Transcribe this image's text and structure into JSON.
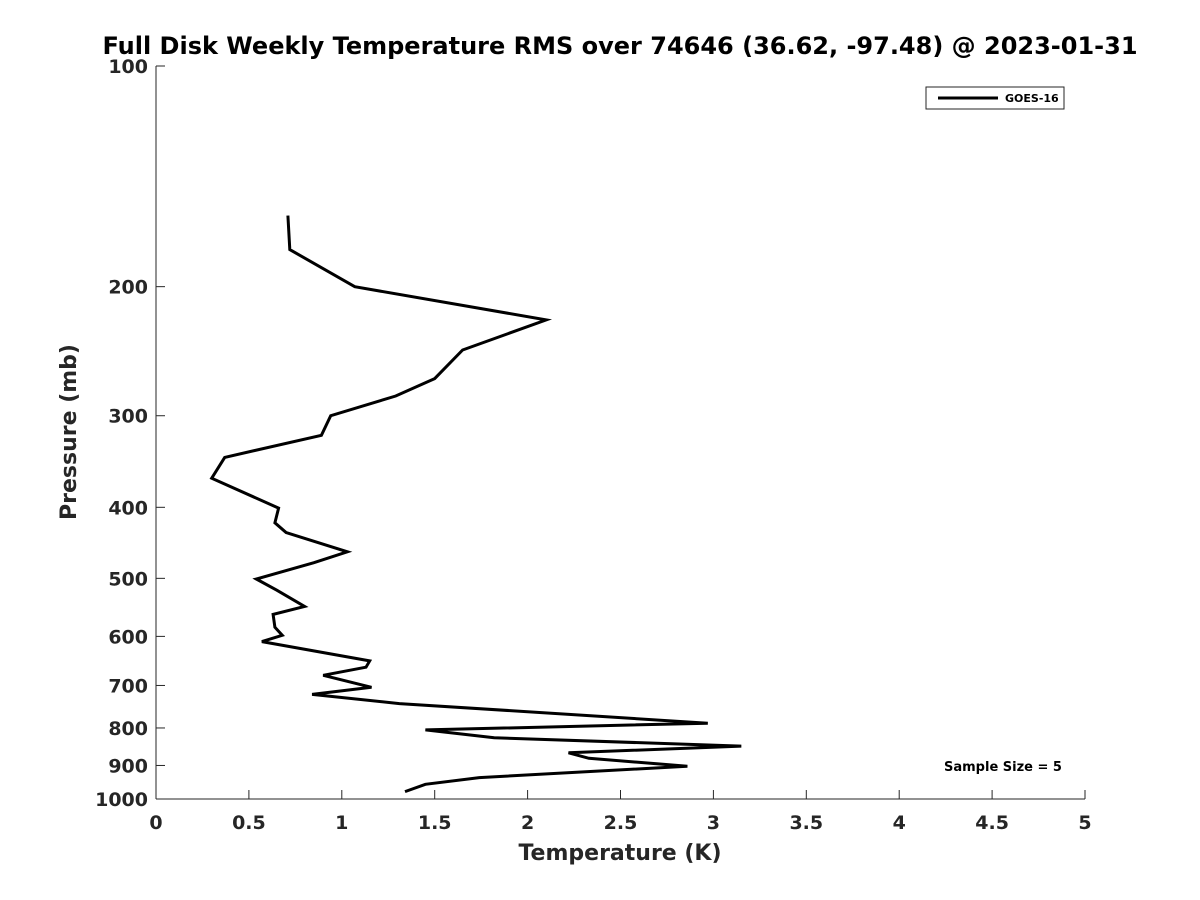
{
  "chart_data": {
    "type": "line",
    "title": "Full Disk Weekly Temperature RMS over 74646 (36.62, -97.48) @ 2023-01-31",
    "xlabel": "Temperature (K)",
    "ylabel": "Pressure (mb)",
    "xlim": [
      0,
      5
    ],
    "ylim": [
      100,
      1000
    ],
    "yscale": "log",
    "y_reversed": true,
    "xticks": [
      0,
      0.5,
      1,
      1.5,
      2,
      2.5,
      3,
      3.5,
      4,
      4.5,
      5
    ],
    "xtick_labels": [
      "0",
      "0.5",
      "1",
      "1.5",
      "2",
      "2.5",
      "3",
      "3.5",
      "4",
      "4.5",
      "5"
    ],
    "yticks": [
      100,
      200,
      300,
      400,
      500,
      600,
      700,
      800,
      900,
      1000
    ],
    "ytick_labels": [
      "100",
      "200",
      "300",
      "400",
      "500",
      "600",
      "700",
      "800",
      "900",
      "1000"
    ],
    "grid": false,
    "legend_position": "top-right",
    "annotation": "Sample Size = 5",
    "series": [
      {
        "name": "GOES-16",
        "color": "#000000",
        "points": [
          {
            "x": 0.71,
            "y": 160
          },
          {
            "x": 0.72,
            "y": 178
          },
          {
            "x": 1.07,
            "y": 200
          },
          {
            "x": 2.1,
            "y": 222
          },
          {
            "x": 1.65,
            "y": 244
          },
          {
            "x": 1.5,
            "y": 267
          },
          {
            "x": 1.29,
            "y": 282
          },
          {
            "x": 0.94,
            "y": 300
          },
          {
            "x": 0.89,
            "y": 319
          },
          {
            "x": 0.37,
            "y": 342
          },
          {
            "x": 0.3,
            "y": 365
          },
          {
            "x": 0.66,
            "y": 401
          },
          {
            "x": 0.64,
            "y": 420
          },
          {
            "x": 0.7,
            "y": 433
          },
          {
            "x": 1.03,
            "y": 460
          },
          {
            "x": 0.85,
            "y": 476
          },
          {
            "x": 0.54,
            "y": 501
          },
          {
            "x": 0.65,
            "y": 519
          },
          {
            "x": 0.8,
            "y": 546
          },
          {
            "x": 0.63,
            "y": 560
          },
          {
            "x": 0.64,
            "y": 583
          },
          {
            "x": 0.68,
            "y": 598
          },
          {
            "x": 0.57,
            "y": 610
          },
          {
            "x": 1.15,
            "y": 648
          },
          {
            "x": 1.13,
            "y": 661
          },
          {
            "x": 0.9,
            "y": 678
          },
          {
            "x": 1.16,
            "y": 704
          },
          {
            "x": 0.84,
            "y": 720
          },
          {
            "x": 1.31,
            "y": 741
          },
          {
            "x": 2.97,
            "y": 788
          },
          {
            "x": 1.45,
            "y": 805
          },
          {
            "x": 1.82,
            "y": 825
          },
          {
            "x": 3.15,
            "y": 847
          },
          {
            "x": 2.22,
            "y": 865
          },
          {
            "x": 2.33,
            "y": 880
          },
          {
            "x": 2.86,
            "y": 902
          },
          {
            "x": 1.74,
            "y": 935
          },
          {
            "x": 1.45,
            "y": 955
          },
          {
            "x": 1.34,
            "y": 977
          }
        ]
      }
    ]
  }
}
